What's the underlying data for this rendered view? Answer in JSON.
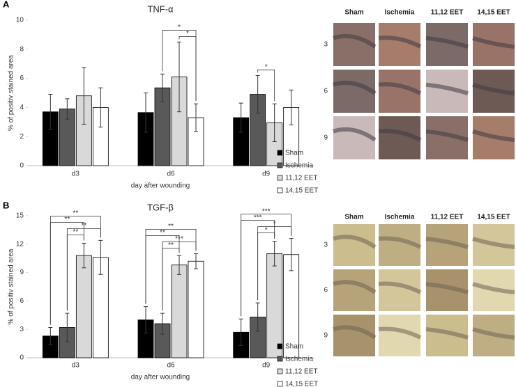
{
  "panel_labels": [
    "A",
    "B"
  ],
  "chart_data": [
    {
      "type": "bar",
      "title": "TNF-α",
      "x_label": "day after wounding",
      "y_label": "% of positiv stained area",
      "categories": [
        "d3",
        "d6",
        "d9"
      ],
      "series": [
        {
          "name": "Sham",
          "color": "#000000",
          "values": [
            3.7,
            3.65,
            3.3
          ],
          "errors": [
            1.2,
            1.35,
            1.0
          ]
        },
        {
          "name": "Ischemia",
          "color": "#595959",
          "values": [
            3.9,
            5.35,
            4.9
          ],
          "errors": [
            0.7,
            0.95,
            1.3
          ]
        },
        {
          "name": "11,12 EET",
          "color": "#d9d9d9",
          "values": [
            4.8,
            6.1,
            2.95
          ],
          "errors": [
            1.95,
            2.4,
            1.3
          ]
        },
        {
          "name": "14,15 EET",
          "color": "#ffffff",
          "values": [
            4.0,
            3.3,
            4.0
          ],
          "errors": [
            1.35,
            0.95,
            1.2
          ]
        }
      ],
      "ylim": [
        0,
        10
      ],
      "yticks": [
        0,
        2,
        4,
        6,
        8,
        10
      ],
      "grid": false,
      "legend": "lower right",
      "annotations": [
        {
          "text": "*",
          "category": "d6",
          "from": "Ischemia",
          "to": "14,15 EET"
        },
        {
          "text": "*",
          "category": "d6",
          "from": "11,12 EET",
          "to": "14,15 EET"
        },
        {
          "text": "*",
          "category": "d9",
          "from": "Ischemia",
          "to": "11,12 EET"
        }
      ]
    },
    {
      "type": "bar",
      "title": "TGF-β",
      "x_label": "day after wounding",
      "y_label": "% of positiv stained area",
      "categories": [
        "d3",
        "d6",
        "d9"
      ],
      "series": [
        {
          "name": "Sham",
          "color": "#000000",
          "values": [
            2.3,
            4.0,
            2.7
          ],
          "errors": [
            0.9,
            1.4,
            1.4
          ]
        },
        {
          "name": "Ischemia",
          "color": "#595959",
          "values": [
            3.2,
            3.6,
            4.3
          ],
          "errors": [
            1.5,
            1.1,
            1.5
          ]
        },
        {
          "name": "11,12 EET",
          "color": "#d9d9d9",
          "values": [
            10.8,
            9.8,
            11.0
          ],
          "errors": [
            1.3,
            1.0,
            1.3
          ]
        },
        {
          "name": "14,15 EET",
          "color": "#ffffff",
          "values": [
            10.6,
            10.2,
            10.9
          ],
          "errors": [
            1.8,
            0.8,
            1.7
          ]
        }
      ],
      "ylim": [
        0,
        15
      ],
      "yticks": [
        0,
        3,
        6,
        9,
        12,
        15
      ],
      "grid": false,
      "legend": "lower right",
      "annotations": [
        {
          "text": "**",
          "category": "d3",
          "from": "Sham",
          "to": "14,15 EET"
        },
        {
          "text": "**",
          "category": "d3",
          "from": "Sham",
          "to": "11,12 EET"
        },
        {
          "text": "**",
          "category": "d3",
          "from": "Ischemia",
          "to": "14,15 EET"
        },
        {
          "text": "**",
          "category": "d3",
          "from": "Ischemia",
          "to": "11,12 EET"
        },
        {
          "text": "**",
          "category": "d6",
          "from": "Sham",
          "to": "14,15 EET"
        },
        {
          "text": "**",
          "category": "d6",
          "from": "Sham",
          "to": "11,12 EET"
        },
        {
          "text": "***",
          "category": "d6",
          "from": "Ischemia",
          "to": "14,15 EET"
        },
        {
          "text": "**",
          "category": "d6",
          "from": "Ischemia",
          "to": "11,12 EET"
        },
        {
          "text": "***",
          "category": "d9",
          "from": "Sham",
          "to": "14,15 EET"
        },
        {
          "text": "***",
          "category": "d9",
          "from": "Sham",
          "to": "11,12 EET"
        },
        {
          "text": "*",
          "category": "d9",
          "from": "Ischemia",
          "to": "14,15 EET"
        },
        {
          "text": "*",
          "category": "d9",
          "from": "Ischemia",
          "to": "11,12 EET"
        }
      ]
    }
  ],
  "image_grids": [
    {
      "columns": [
        "Sham",
        "Ischemia",
        "11,12 EET",
        "14,15 EET"
      ],
      "rows": [
        "3",
        "6",
        "9"
      ]
    },
    {
      "columns": [
        "Sham",
        "Ischemia",
        "11,12 EET",
        "14,15 EET"
      ],
      "rows": [
        "3",
        "6",
        "9"
      ]
    }
  ]
}
